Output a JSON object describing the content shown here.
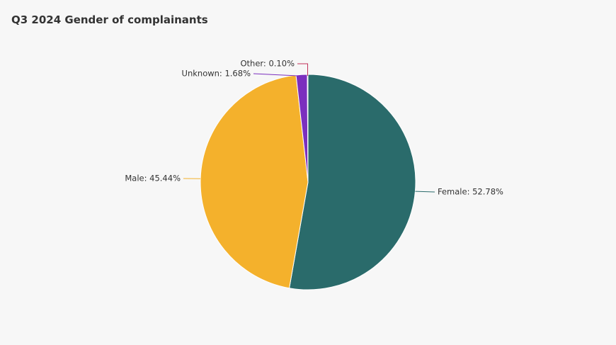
{
  "chart_data": {
    "type": "pie",
    "title": "Q3 2024 Gender of complainants",
    "categories": [
      "Female",
      "Male",
      "Unknown",
      "Other"
    ],
    "values": [
      52.78,
      45.44,
      1.68,
      0.1
    ],
    "value_labels": [
      "Female: 52.78%",
      "Male: 45.44%",
      "Unknown: 1.68%",
      "Other: 0.10%"
    ],
    "colors": [
      "#2a6b6b",
      "#f4b12c",
      "#7b2fbe",
      "#c0305a"
    ]
  }
}
